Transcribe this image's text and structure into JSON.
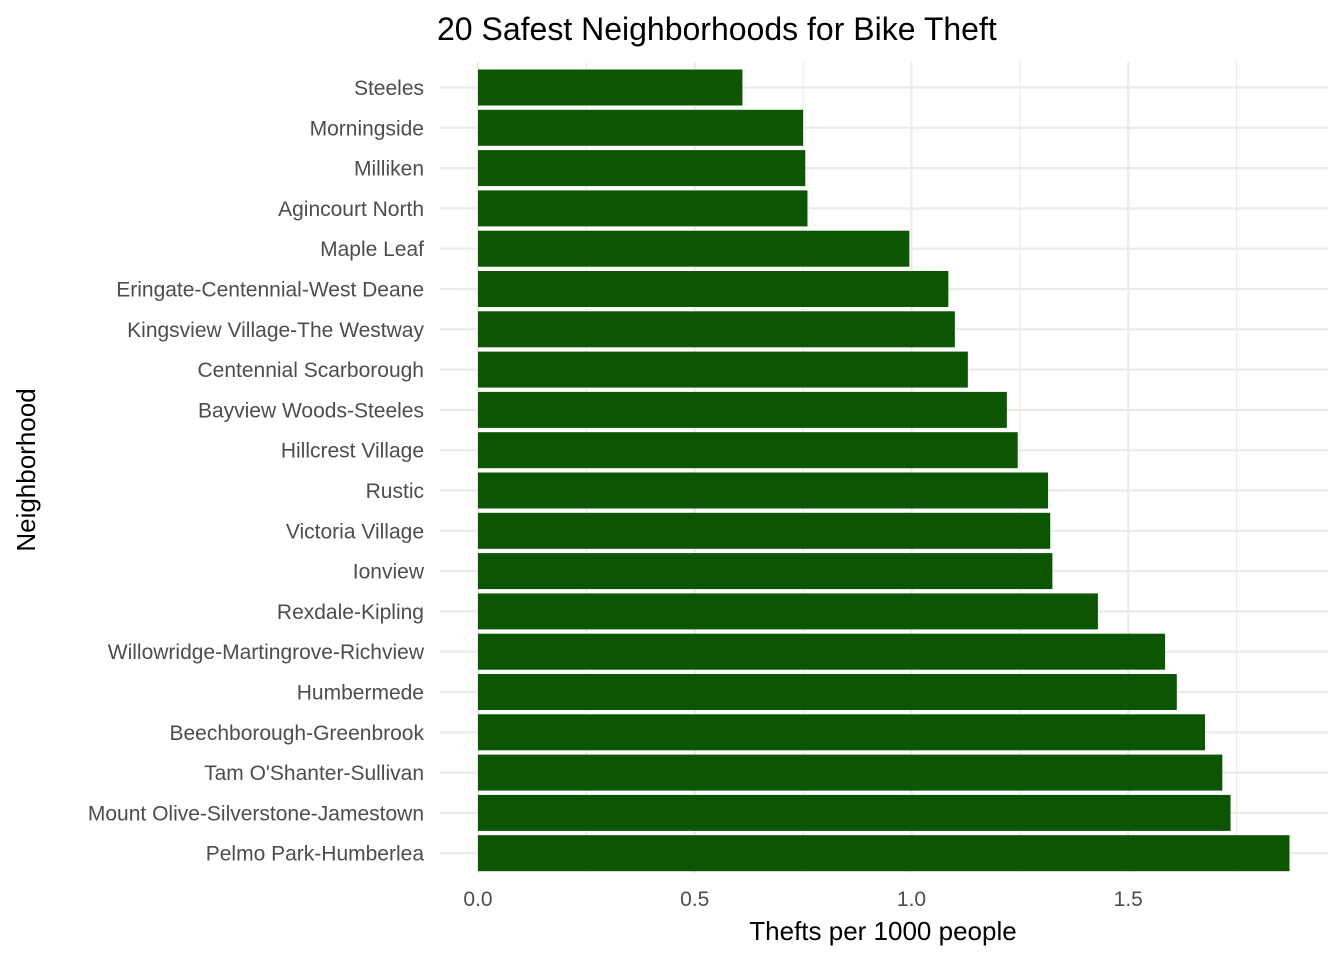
{
  "chart_data": {
    "type": "bar",
    "orientation": "horizontal",
    "title": "20 Safest Neighborhoods for Bike Theft",
    "xlabel": "Thefts per 1000 people",
    "ylabel": "Neighborhood",
    "bar_color": "#0c5502",
    "grid": true,
    "xlim": [
      0,
      1.88
    ],
    "xticks": [
      0,
      0.5,
      1.0,
      1.5
    ],
    "xtick_labels": [
      "0.0",
      "0.5",
      "1.0",
      "1.5"
    ],
    "categories": [
      "Steeles",
      "Morningside",
      "Milliken",
      "Agincourt North",
      "Maple Leaf",
      "Eringate-Centennial-West Deane",
      "Kingsview Village-The Westway",
      "Centennial Scarborough",
      "Bayview Woods-Steeles",
      "Hillcrest Village",
      "Rustic",
      "Victoria Village",
      "Ionview",
      "Rexdale-Kipling",
      "Willowridge-Martingrove-Richview",
      "Humbermede",
      "Beechborough-Greenbrook",
      "Tam O'Shanter-Sullivan",
      "Mount Olive-Silverstone-Jamestown",
      "Pelmo Park-Humberlea"
    ],
    "values": [
      0.61,
      0.75,
      0.755,
      0.76,
      0.995,
      1.085,
      1.1,
      1.13,
      1.22,
      1.245,
      1.315,
      1.32,
      1.325,
      1.43,
      1.585,
      1.612,
      1.677,
      1.717,
      1.736,
      1.872
    ]
  }
}
